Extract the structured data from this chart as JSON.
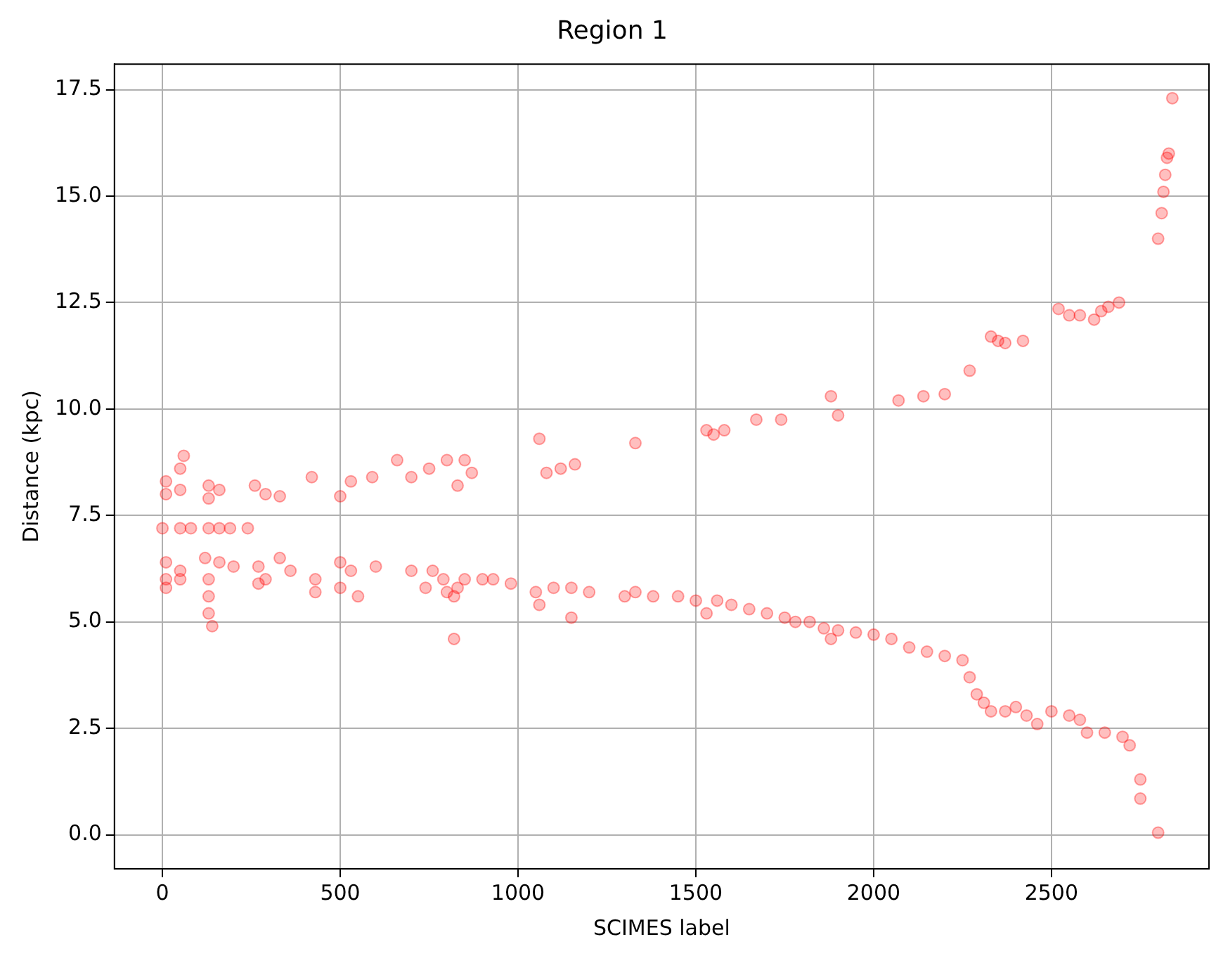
{
  "chart_data": {
    "type": "scatter",
    "title": "Region 1",
    "xlabel": "SCIMES label",
    "ylabel": "Distance (kpc)",
    "xlim": [
      -135,
      2943
    ],
    "ylim": [
      -0.8,
      18.1
    ],
    "xticks": [
      0,
      500,
      1000,
      1500,
      2000,
      2500
    ],
    "yticks": [
      {
        "value": 0,
        "label": "0.0"
      },
      {
        "value": 2.5,
        "label": "2.5"
      },
      {
        "value": 5,
        "label": "5.0"
      },
      {
        "value": 7.5,
        "label": "7.5"
      },
      {
        "value": 10,
        "label": "10.0"
      },
      {
        "value": 12.5,
        "label": "12.5"
      },
      {
        "value": 15,
        "label": "15.0"
      },
      {
        "value": 17.5,
        "label": "17.5"
      }
    ],
    "grid": true,
    "marker": "circle",
    "series": [
      {
        "color": "#ff0000",
        "x": [
          10,
          10,
          50,
          50,
          60,
          130,
          130,
          160,
          260,
          290,
          330,
          420,
          500,
          530,
          590,
          660,
          700,
          750,
          800,
          830,
          850,
          870,
          1060,
          1080,
          1120,
          1160,
          1330,
          1530,
          1550,
          1580,
          1670,
          1740,
          1880,
          1900,
          2070,
          2140,
          2200,
          2270,
          2330,
          2350,
          2370,
          2420,
          2520,
          2550,
          2580,
          2620,
          2640,
          2660,
          2690,
          2800,
          2810,
          2815,
          2820,
          2825,
          2830,
          2840,
          0,
          50,
          80,
          130,
          160,
          190,
          240,
          10,
          10,
          10,
          50,
          50,
          120,
          130,
          130,
          130,
          140,
          160,
          200,
          270,
          270,
          290,
          330,
          360,
          430,
          430,
          500,
          500,
          530,
          550,
          600,
          700,
          740,
          760,
          790,
          800,
          820,
          820,
          830,
          850,
          900,
          930,
          980,
          1050,
          1060,
          1100,
          1150,
          1150,
          1200,
          1300,
          1330,
          1380,
          1450,
          1500,
          1530,
          1560,
          1600,
          1650,
          1700,
          1750,
          1780,
          1820,
          1860,
          1880,
          1900,
          1950,
          2000,
          2050,
          2100,
          2150,
          2200,
          2250,
          2270,
          2290,
          2310,
          2330,
          2370,
          2400,
          2430,
          2460,
          2500,
          2550,
          2580,
          2600,
          2650,
          2700,
          2720,
          2750,
          2750,
          2800
        ],
        "values": [
          8.0,
          8.3,
          8.1,
          8.6,
          8.9,
          8.2,
          7.9,
          8.1,
          8.2,
          8.0,
          7.95,
          8.4,
          7.95,
          8.3,
          8.4,
          8.8,
          8.4,
          8.6,
          8.8,
          8.2,
          8.8,
          8.5,
          9.3,
          8.5,
          8.6,
          8.7,
          9.2,
          9.5,
          9.4,
          9.5,
          9.75,
          9.75,
          10.3,
          9.85,
          10.2,
          10.3,
          10.35,
          10.9,
          11.7,
          11.6,
          11.55,
          11.6,
          12.35,
          12.2,
          12.2,
          12.1,
          12.3,
          12.4,
          12.5,
          14.0,
          14.6,
          15.1,
          15.5,
          15.9,
          16.0,
          17.3,
          7.2,
          7.2,
          7.2,
          7.2,
          7.2,
          7.2,
          7.2,
          6.4,
          6.0,
          5.8,
          6.2,
          6.0,
          6.5,
          6.0,
          5.6,
          5.2,
          4.9,
          6.4,
          6.3,
          6.3,
          5.9,
          6.0,
          6.5,
          6.2,
          6.0,
          5.7,
          6.4,
          5.8,
          6.2,
          5.6,
          6.3,
          6.2,
          5.8,
          6.2,
          6.0,
          5.7,
          5.6,
          4.6,
          5.8,
          6.0,
          6.0,
          6.0,
          5.9,
          5.7,
          5.4,
          5.8,
          5.8,
          5.1,
          5.7,
          5.6,
          5.7,
          5.6,
          5.6,
          5.5,
          5.2,
          5.5,
          5.4,
          5.3,
          5.2,
          5.1,
          5.0,
          5.0,
          4.85,
          4.6,
          4.8,
          4.75,
          4.7,
          4.6,
          4.4,
          4.3,
          4.2,
          4.1,
          3.7,
          3.3,
          3.1,
          2.9,
          2.9,
          3.0,
          2.8,
          2.6,
          2.9,
          2.8,
          2.7,
          2.4,
          2.4,
          2.3,
          2.1,
          1.3,
          0.85,
          0.05
        ]
      }
    ]
  }
}
